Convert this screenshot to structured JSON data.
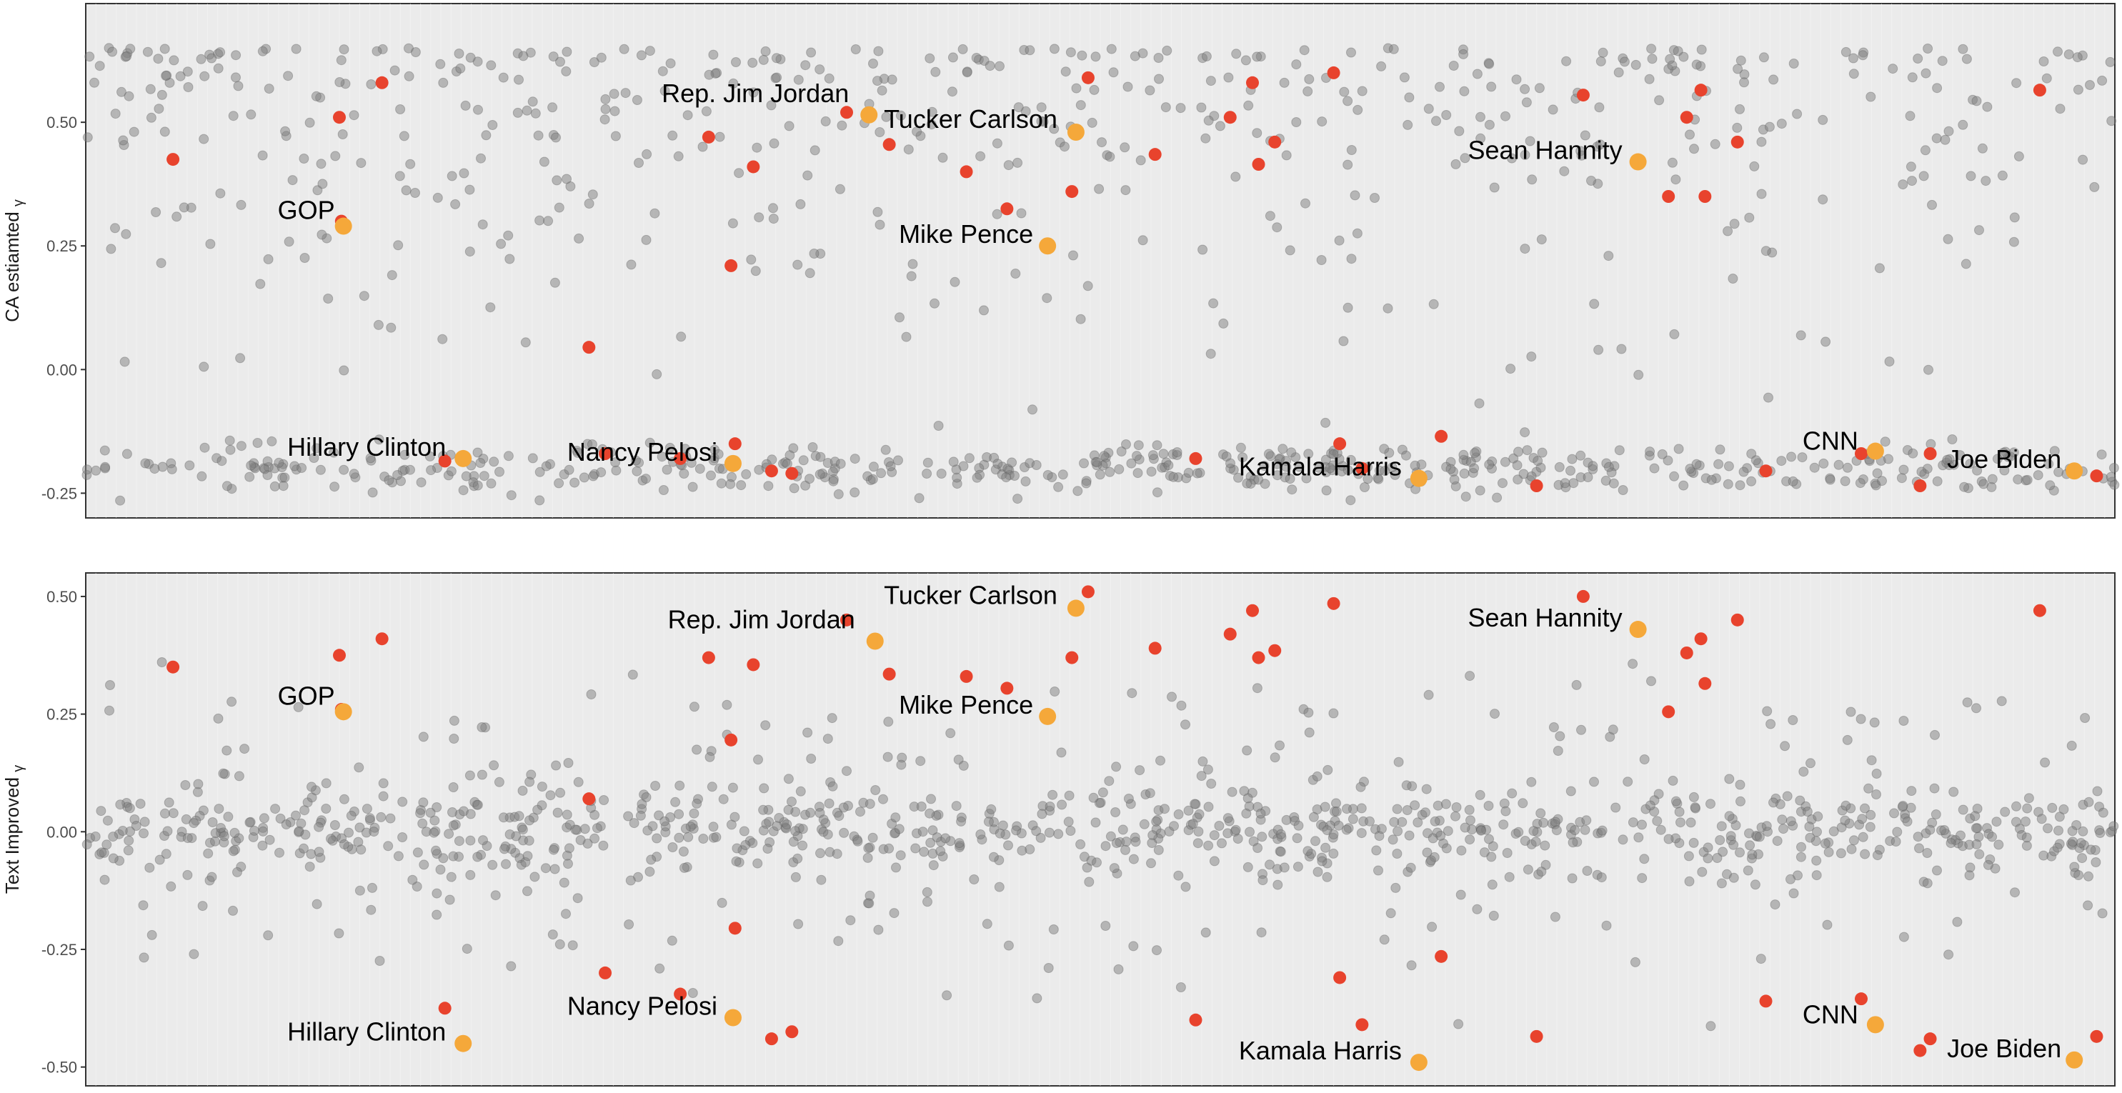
{
  "chart_data": [
    {
      "type": "scatter",
      "ylabel": "CA estiamted",
      "ylabel_symbol": "γ",
      "ylim": [
        -0.3,
        0.74
      ],
      "yticks": [
        0.5,
        0.25,
        0.0,
        -0.25
      ],
      "ytick_labels": [
        "0.50",
        "0.25",
        "0.00",
        "-0.25"
      ],
      "xlim": [
        0,
        100
      ],
      "grid": true,
      "legend": "none",
      "colors": {
        "background": "#ebebeb",
        "other": "#808080",
        "highlight_red": "#e8432d",
        "highlight_orange": "#f5a83a"
      },
      "labeled_points": [
        {
          "label": "GOP",
          "x": 12.7,
          "y": 0.29
        },
        {
          "label": "Rep. Jim Jordan",
          "x": 38.6,
          "y": 0.515
        },
        {
          "label": "Tucker Carlson",
          "x": 48.8,
          "y": 0.48
        },
        {
          "label": "Mike Pence",
          "x": 47.4,
          "y": 0.25
        },
        {
          "label": "Sean Hannity",
          "x": 76.5,
          "y": 0.42
        },
        {
          "label": "Hillary Clinton",
          "x": 18.6,
          "y": -0.18
        },
        {
          "label": "Nancy Pelosi",
          "x": 31.9,
          "y": -0.19
        },
        {
          "label": "Kamala Harris",
          "x": 65.7,
          "y": -0.22
        },
        {
          "label": "CNN",
          "x": 88.2,
          "y": -0.165
        },
        {
          "label": "Joe Biden",
          "x": 98.0,
          "y": -0.205
        }
      ],
      "red_points": [
        {
          "x": 4.3,
          "y": 0.425
        },
        {
          "x": 12.5,
          "y": 0.51
        },
        {
          "x": 14.6,
          "y": 0.58
        },
        {
          "x": 12.6,
          "y": 0.3
        },
        {
          "x": 17.7,
          "y": -0.185
        },
        {
          "x": 24.8,
          "y": 0.045
        },
        {
          "x": 25.6,
          "y": -0.17
        },
        {
          "x": 29.3,
          "y": -0.18
        },
        {
          "x": 30.7,
          "y": 0.47
        },
        {
          "x": 32.9,
          "y": 0.41
        },
        {
          "x": 31.8,
          "y": 0.21
        },
        {
          "x": 32.0,
          "y": -0.15
        },
        {
          "x": 33.8,
          "y": -0.205
        },
        {
          "x": 34.8,
          "y": -0.21
        },
        {
          "x": 37.5,
          "y": 0.52
        },
        {
          "x": 39.6,
          "y": 0.455
        },
        {
          "x": 43.4,
          "y": 0.4
        },
        {
          "x": 45.4,
          "y": 0.325
        },
        {
          "x": 48.6,
          "y": 0.36
        },
        {
          "x": 49.4,
          "y": 0.59
        },
        {
          "x": 52.7,
          "y": 0.435
        },
        {
          "x": 54.7,
          "y": -0.18
        },
        {
          "x": 56.4,
          "y": 0.51
        },
        {
          "x": 57.5,
          "y": 0.58
        },
        {
          "x": 57.8,
          "y": 0.415
        },
        {
          "x": 58.6,
          "y": 0.46
        },
        {
          "x": 61.5,
          "y": 0.6
        },
        {
          "x": 61.8,
          "y": -0.15
        },
        {
          "x": 62.9,
          "y": -0.2
        },
        {
          "x": 66.8,
          "y": -0.135
        },
        {
          "x": 71.5,
          "y": -0.235
        },
        {
          "x": 73.8,
          "y": 0.555
        },
        {
          "x": 78.0,
          "y": 0.35
        },
        {
          "x": 78.9,
          "y": 0.51
        },
        {
          "x": 79.6,
          "y": 0.565
        },
        {
          "x": 79.8,
          "y": 0.35
        },
        {
          "x": 81.4,
          "y": 0.46
        },
        {
          "x": 82.8,
          "y": -0.205
        },
        {
          "x": 87.5,
          "y": -0.17
        },
        {
          "x": 90.4,
          "y": -0.235
        },
        {
          "x": 90.9,
          "y": -0.17
        },
        {
          "x": 96.3,
          "y": 0.565
        },
        {
          "x": 99.1,
          "y": -0.215
        }
      ]
    },
    {
      "type": "scatter",
      "ylabel": "Text Improved",
      "ylabel_symbol": "γ",
      "ylim": [
        -0.54,
        0.55
      ],
      "yticks": [
        0.5,
        0.25,
        0.0,
        -0.25,
        -0.5
      ],
      "ytick_labels": [
        "0.50",
        "0.25",
        "0.00",
        "-0.25",
        "-0.50"
      ],
      "xlim": [
        0,
        100
      ],
      "grid": true,
      "legend": "none",
      "colors": {
        "background": "#ebebeb",
        "other": "#808080",
        "highlight_red": "#e8432d",
        "highlight_orange": "#f5a83a"
      },
      "labeled_points": [
        {
          "label": "Tucker Carlson",
          "x": 48.8,
          "y": 0.475
        },
        {
          "label": "Rep. Jim Jordan",
          "x": 38.9,
          "y": 0.405
        },
        {
          "label": "Sean Hannity",
          "x": 76.5,
          "y": 0.43
        },
        {
          "label": "GOP",
          "x": 12.7,
          "y": 0.255
        },
        {
          "label": "Mike Pence",
          "x": 47.4,
          "y": 0.245
        },
        {
          "label": "Hillary Clinton",
          "x": 18.6,
          "y": -0.45
        },
        {
          "label": "Nancy Pelosi",
          "x": 31.9,
          "y": -0.395
        },
        {
          "label": "Kamala Harris",
          "x": 65.7,
          "y": -0.49
        },
        {
          "label": "CNN",
          "x": 88.2,
          "y": -0.41
        },
        {
          "label": "Joe Biden",
          "x": 98.0,
          "y": -0.485
        }
      ],
      "red_points": [
        {
          "x": 4.3,
          "y": 0.35
        },
        {
          "x": 12.5,
          "y": 0.375
        },
        {
          "x": 14.6,
          "y": 0.41
        },
        {
          "x": 12.6,
          "y": 0.26
        },
        {
          "x": 17.7,
          "y": -0.375
        },
        {
          "x": 24.8,
          "y": 0.07
        },
        {
          "x": 25.6,
          "y": -0.3
        },
        {
          "x": 29.3,
          "y": -0.345
        },
        {
          "x": 30.7,
          "y": 0.37
        },
        {
          "x": 32.9,
          "y": 0.355
        },
        {
          "x": 31.8,
          "y": 0.195
        },
        {
          "x": 32.0,
          "y": -0.205
        },
        {
          "x": 33.8,
          "y": -0.44
        },
        {
          "x": 34.8,
          "y": -0.425
        },
        {
          "x": 37.5,
          "y": 0.45
        },
        {
          "x": 39.6,
          "y": 0.335
        },
        {
          "x": 43.4,
          "y": 0.33
        },
        {
          "x": 45.4,
          "y": 0.305
        },
        {
          "x": 48.6,
          "y": 0.37
        },
        {
          "x": 49.4,
          "y": 0.51
        },
        {
          "x": 52.7,
          "y": 0.39
        },
        {
          "x": 54.7,
          "y": -0.4
        },
        {
          "x": 56.4,
          "y": 0.42
        },
        {
          "x": 57.5,
          "y": 0.47
        },
        {
          "x": 57.8,
          "y": 0.37
        },
        {
          "x": 58.6,
          "y": 0.385
        },
        {
          "x": 61.5,
          "y": 0.485
        },
        {
          "x": 61.8,
          "y": -0.31
        },
        {
          "x": 62.9,
          "y": -0.41
        },
        {
          "x": 66.8,
          "y": -0.265
        },
        {
          "x": 71.5,
          "y": -0.435
        },
        {
          "x": 73.8,
          "y": 0.5
        },
        {
          "x": 78.0,
          "y": 0.255
        },
        {
          "x": 78.9,
          "y": 0.38
        },
        {
          "x": 79.6,
          "y": 0.41
        },
        {
          "x": 79.8,
          "y": 0.315
        },
        {
          "x": 81.4,
          "y": 0.45
        },
        {
          "x": 82.8,
          "y": -0.36
        },
        {
          "x": 87.5,
          "y": -0.355
        },
        {
          "x": 90.4,
          "y": -0.465
        },
        {
          "x": 90.9,
          "y": -0.44
        },
        {
          "x": 96.3,
          "y": 0.47
        },
        {
          "x": 99.1,
          "y": -0.435
        }
      ]
    }
  ]
}
